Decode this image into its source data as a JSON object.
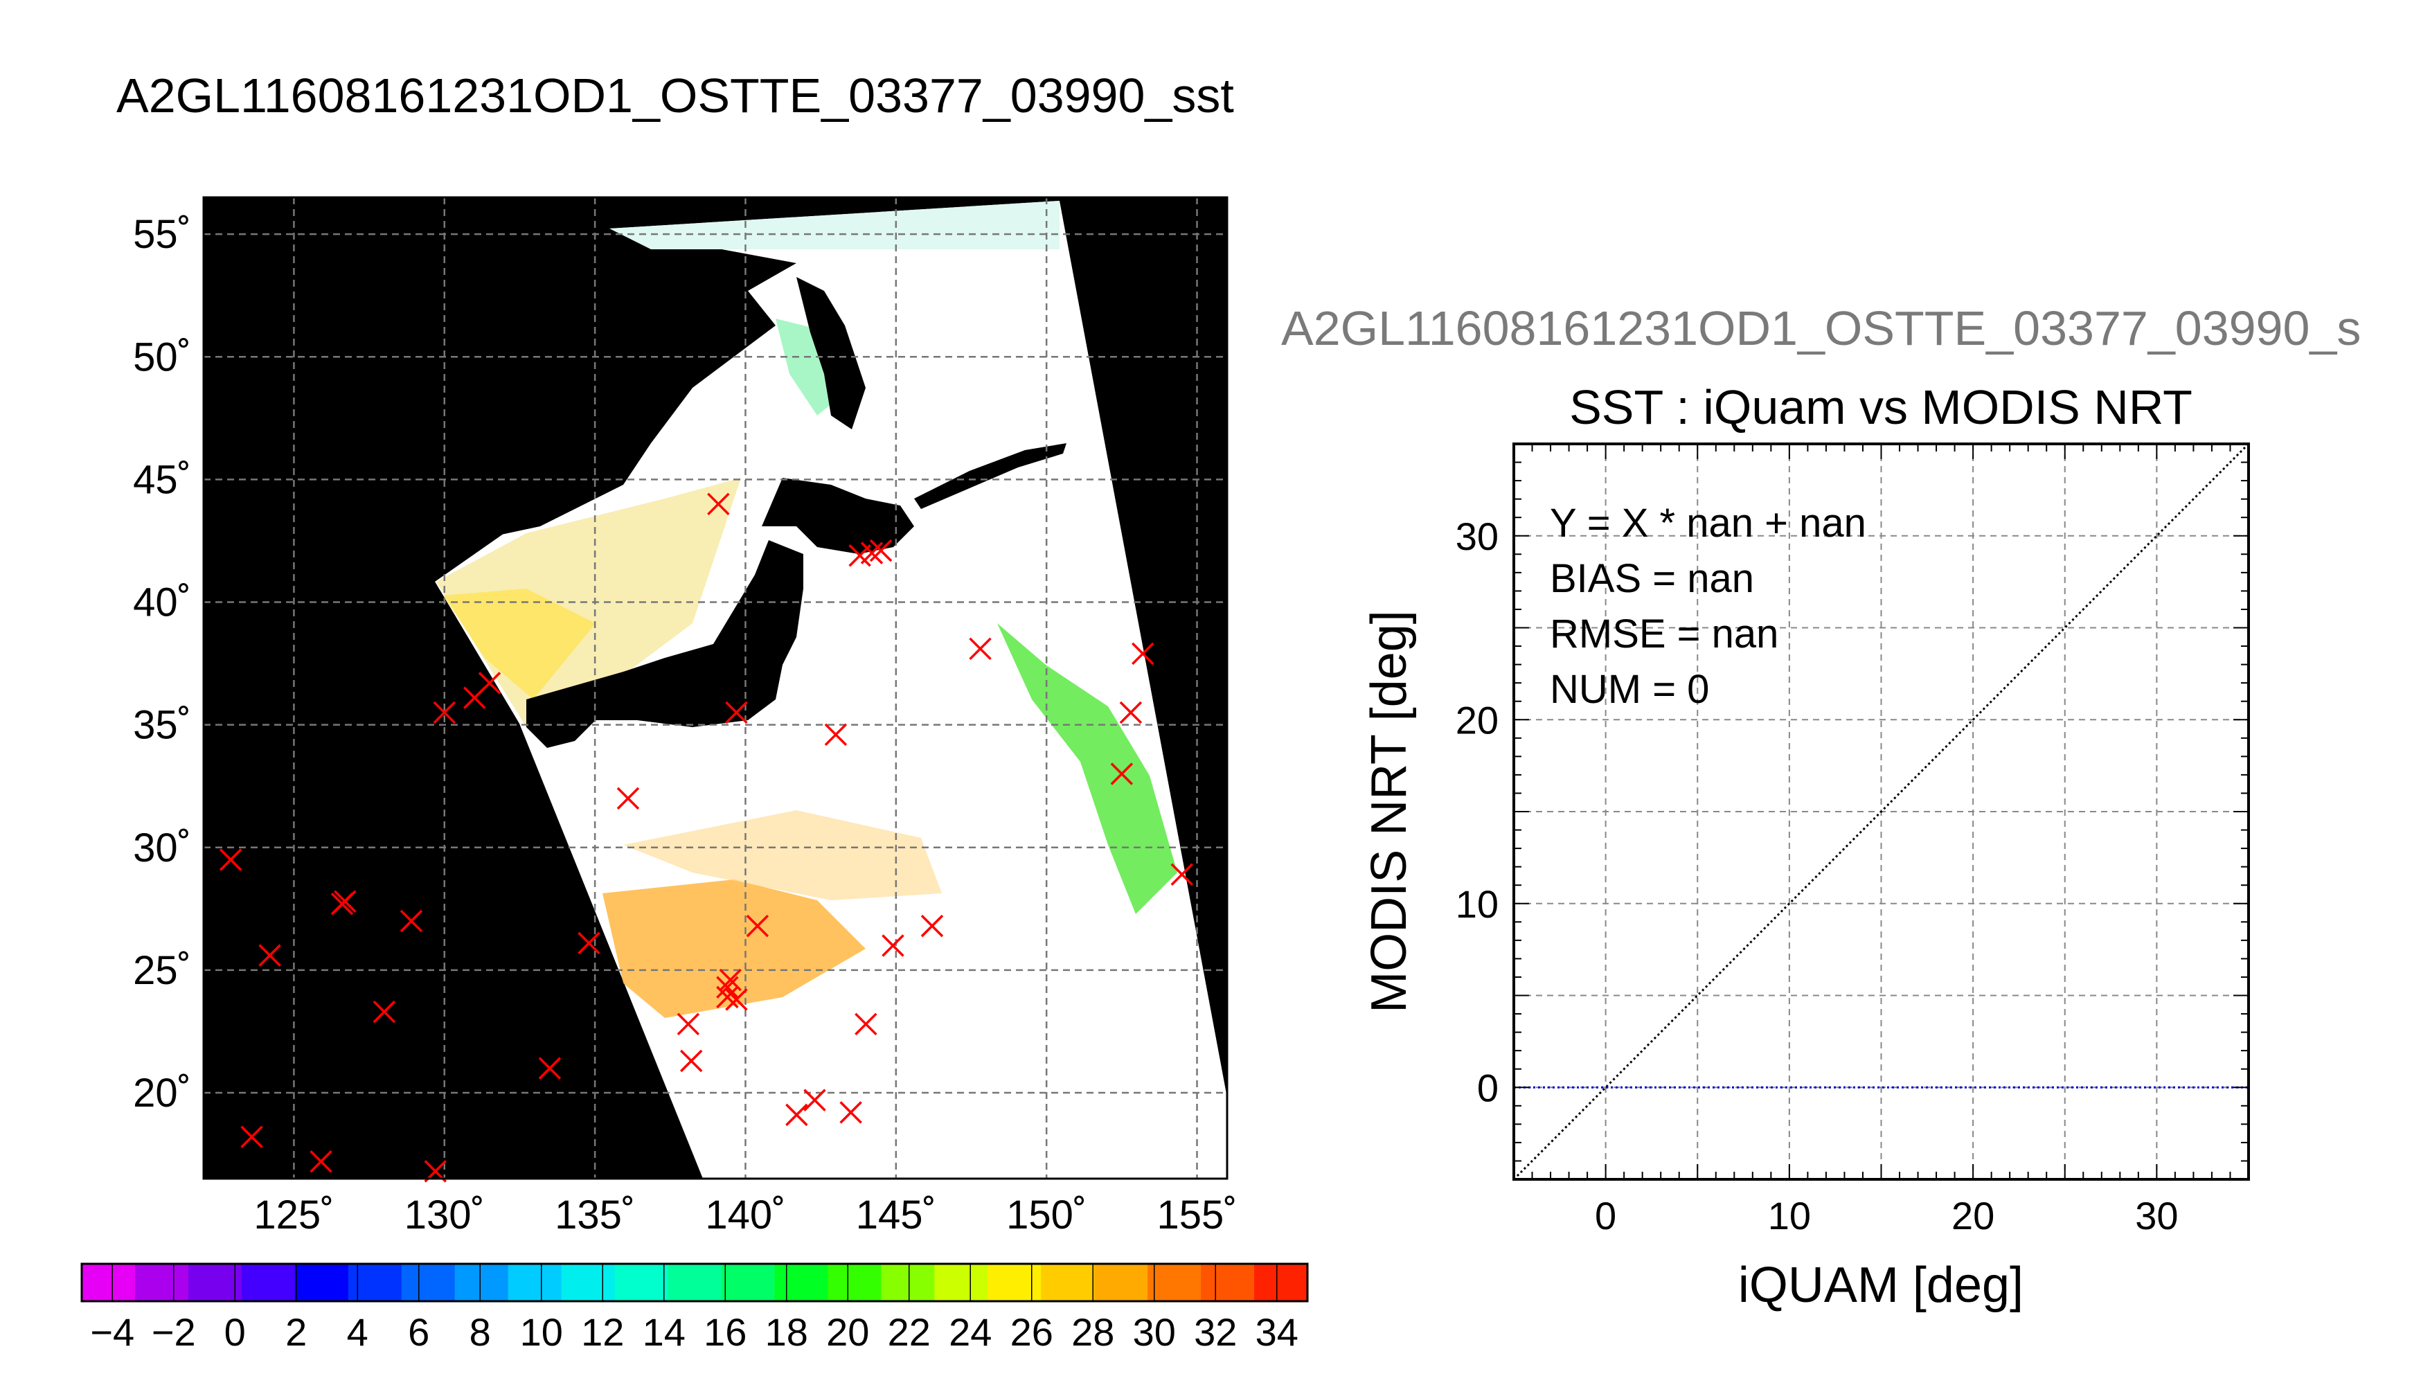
{
  "figure": {
    "map_title": "A2GL11608161231OD1_OSTTE_03377_03990_sst",
    "scatter_caption": "A2GL11608161231OD1_OSTTE_03377_03990_s"
  },
  "chart_data": [
    {
      "type": "heatmap",
      "title": "A2GL11608161231OD1_OSTTE_03377_03990_sst",
      "xlim": [
        122,
        156
      ],
      "ylim": [
        16.5,
        56.5
      ],
      "x_ticks": [
        125,
        130,
        135,
        140,
        145,
        150,
        155
      ],
      "y_ticks": [
        20,
        25,
        30,
        35,
        40,
        45,
        50,
        55
      ],
      "x_tick_labels": [
        "125˚",
        "130˚",
        "135˚",
        "140˚",
        "145˚",
        "150˚",
        "155˚"
      ],
      "y_tick_labels": [
        "20˚",
        "25˚",
        "30˚",
        "35˚",
        "40˚",
        "45˚",
        "50˚",
        "55˚"
      ],
      "grid": true,
      "colorbar": {
        "min": -5,
        "max": 35,
        "step": 2,
        "tick_labels": [
          "−4",
          "−2",
          "0",
          "2",
          "4",
          "6",
          "8",
          "10",
          "12",
          "14",
          "16",
          "18",
          "20",
          "22",
          "24",
          "26",
          "28",
          "30",
          "32",
          "34"
        ],
        "tick_values": [
          -4,
          -2,
          0,
          2,
          4,
          6,
          8,
          10,
          12,
          14,
          16,
          18,
          20,
          22,
          24,
          26,
          28,
          30,
          32,
          34
        ],
        "colors": [
          "#e600f5",
          "#aa00ee",
          "#7700ee",
          "#4400ff",
          "#0000ff",
          "#0033ff",
          "#0066ff",
          "#0099ff",
          "#00ccff",
          "#00eeee",
          "#00ffcc",
          "#00ff99",
          "#00ff66",
          "#00ff22",
          "#33ff00",
          "#88ff00",
          "#ccff00",
          "#ffee00",
          "#ffcc00",
          "#ffaa00",
          "#ff7700",
          "#ff5500",
          "#ff2200"
        ]
      },
      "markers": {
        "symbol": "x",
        "color": "#ff0000",
        "points": [
          [
            122.9,
            29.5
          ],
          [
            124.2,
            25.6
          ],
          [
            126.6,
            27.7
          ],
          [
            126.7,
            27.8
          ],
          [
            128.0,
            23.3
          ],
          [
            128.9,
            27.0
          ],
          [
            123.6,
            18.2
          ],
          [
            125.9,
            17.2
          ],
          [
            129.7,
            16.8
          ],
          [
            131.0,
            36.1
          ],
          [
            130.0,
            35.5
          ],
          [
            131.5,
            36.7
          ],
          [
            133.5,
            21.0
          ],
          [
            134.8,
            26.1
          ],
          [
            136.1,
            32.0
          ],
          [
            139.1,
            44.0
          ],
          [
            139.7,
            35.5
          ],
          [
            138.1,
            22.8
          ],
          [
            138.2,
            21.3
          ],
          [
            139.4,
            24.3
          ],
          [
            139.5,
            24.6
          ],
          [
            139.7,
            23.8
          ],
          [
            139.4,
            23.9
          ],
          [
            140.4,
            26.8
          ],
          [
            141.7,
            19.1
          ],
          [
            142.3,
            19.7
          ],
          [
            143.0,
            34.6
          ],
          [
            143.5,
            19.2
          ],
          [
            143.8,
            41.9
          ],
          [
            144.2,
            42.0
          ],
          [
            144.5,
            42.1
          ],
          [
            144.0,
            22.8
          ],
          [
            144.9,
            26.0
          ],
          [
            146.2,
            26.8
          ],
          [
            147.8,
            38.1
          ],
          [
            152.5,
            33.0
          ],
          [
            152.8,
            35.5
          ],
          [
            153.2,
            37.9
          ],
          [
            154.5,
            28.9
          ]
        ]
      }
    },
    {
      "type": "scatter",
      "title": "SST : iQuam vs MODIS NRT",
      "xlabel": "iQUAM [deg]",
      "ylabel": "MODIS NRT [deg]",
      "xlim": [
        -5,
        35
      ],
      "ylim": [
        -5,
        35
      ],
      "x_ticks": [
        0,
        10,
        20,
        30
      ],
      "y_ticks": [
        0,
        10,
        20,
        30
      ],
      "minor_grid_step": 5,
      "grid": true,
      "annotations": [
        "Y = X * nan + nan",
        "BIAS = nan",
        "RMSE = nan",
        "NUM = 0"
      ],
      "series": [
        {
          "style": "dotted",
          "color": "#000000",
          "x": [
            -5,
            35
          ],
          "y": [
            -5,
            35
          ]
        },
        {
          "style": "dotted",
          "color": "#0000cc",
          "x": [
            -5,
            35
          ],
          "y": [
            0,
            0
          ]
        }
      ],
      "points": []
    }
  ]
}
